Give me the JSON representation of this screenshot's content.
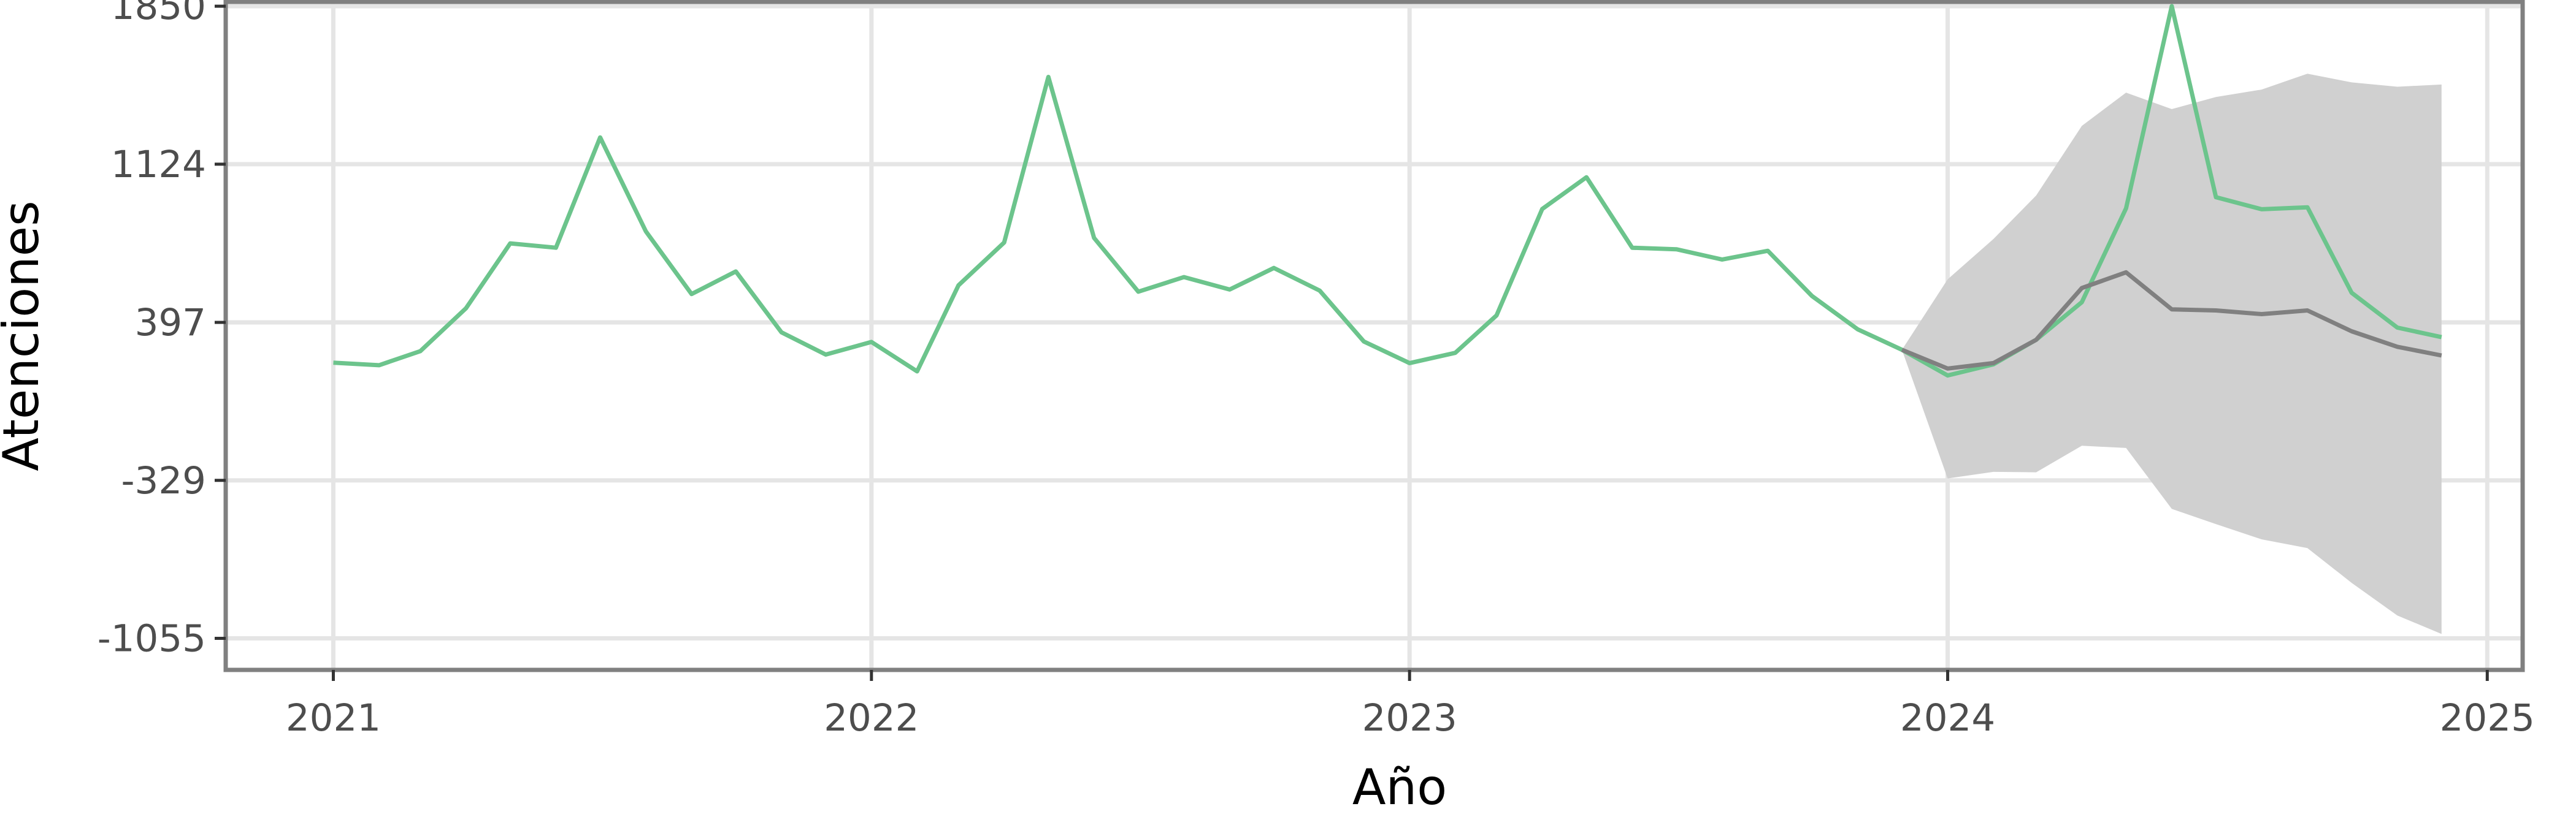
{
  "chart_data": {
    "type": "line",
    "title": "",
    "xlabel": "Año",
    "ylabel": "Atenciones",
    "x_ticks": [
      "2021",
      "2022",
      "2023",
      "2024",
      "2025"
    ],
    "y_ticks": [
      1850,
      1124,
      397,
      -329,
      -1055
    ],
    "xlim": [
      "2020-10-20",
      "2025-01-25"
    ],
    "ylim": [
      -1200,
      1870
    ],
    "grid": true,
    "legend": "none",
    "colors": {
      "observed": "#6cc48c",
      "forecast": "#808080",
      "interval": "#d0d0d0",
      "border": "#808080"
    },
    "series": [
      {
        "key": "observed",
        "x": [
          "2021-01",
          "2021-02",
          "2021-03",
          "2021-04",
          "2021-05",
          "2021-06",
          "2021-07",
          "2021-08",
          "2021-09",
          "2021-10",
          "2021-11",
          "2021-12",
          "2022-01",
          "2022-02",
          "2022-03",
          "2022-04",
          "2022-05",
          "2022-06",
          "2022-07",
          "2022-08",
          "2022-09",
          "2022-10",
          "2022-11",
          "2022-12",
          "2023-01",
          "2023-02",
          "2023-03",
          "2023-04",
          "2023-05",
          "2023-06",
          "2023-07",
          "2023-08",
          "2023-09",
          "2023-10",
          "2023-11",
          "2023-12",
          "2024-01",
          "2024-02",
          "2024-03",
          "2024-04",
          "2024-05",
          "2024-06",
          "2024-07",
          "2024-08",
          "2024-09",
          "2024-10",
          "2024-11",
          "2024-12"
        ],
        "values": [
          212,
          200,
          265,
          462,
          760,
          740,
          1247,
          815,
          527,
          631,
          351,
          249,
          307,
          172,
          567,
          764,
          1525,
          785,
          538,
          605,
          548,
          647,
          543,
          309,
          210,
          257,
          429,
          918,
          1064,
          740,
          733,
          686,
          726,
          518,
          365,
          271,
          153,
          204,
          317,
          490,
          921,
          1850,
          972,
          917,
          926,
          533,
          373,
          329
        ]
      },
      {
        "key": "forecast",
        "x": [
          "2023-12",
          "2024-01",
          "2024-02",
          "2024-03",
          "2024-04",
          "2024-05",
          "2024-06",
          "2024-07",
          "2024-08",
          "2024-09",
          "2024-10",
          "2024-11",
          "2024-12"
        ],
        "values": [
          271,
          185,
          210,
          317,
          555,
          627,
          457,
          452,
          435,
          452,
          356,
          285,
          245
        ]
      }
    ],
    "interval": {
      "x": [
        "2023-12",
        "2024-01",
        "2024-02",
        "2024-03",
        "2024-04",
        "2024-05",
        "2024-06",
        "2024-07",
        "2024-08",
        "2024-09",
        "2024-10",
        "2024-11",
        "2024-12"
      ],
      "lower": [
        271,
        -320,
        -290,
        -292,
        -170,
        -180,
        -460,
        -530,
        -600,
        -640,
        -800,
        -950,
        -1035
      ],
      "upper": [
        271,
        595,
        780,
        980,
        1300,
        1453,
        1377,
        1433,
        1467,
        1540,
        1500,
        1480,
        1490
      ]
    }
  }
}
